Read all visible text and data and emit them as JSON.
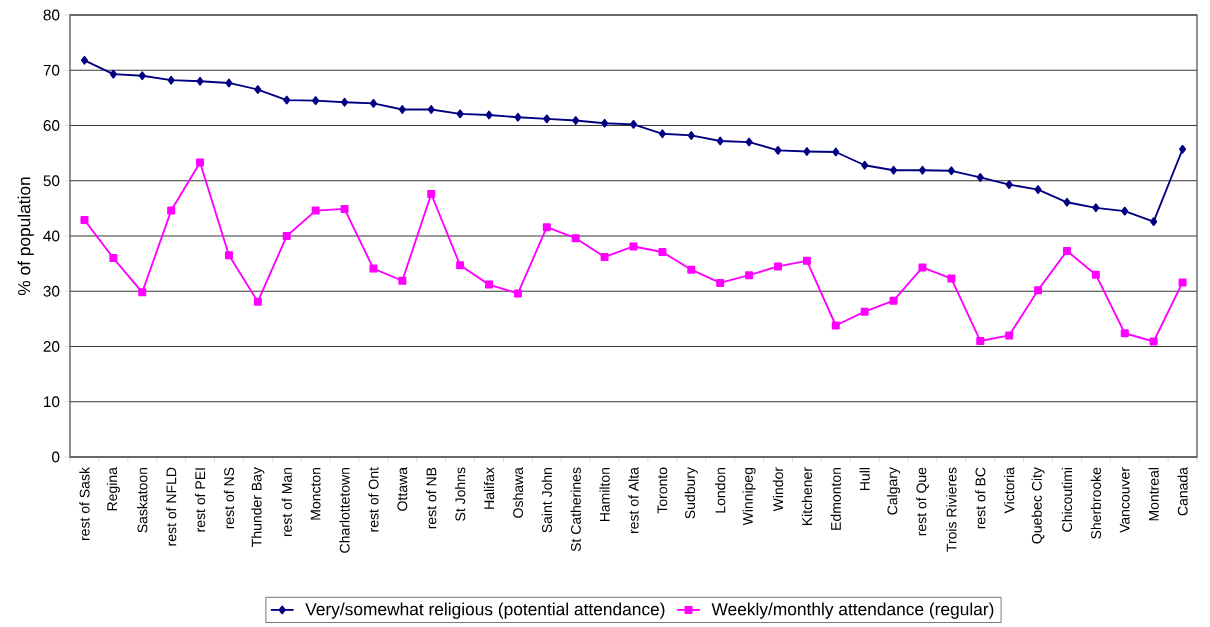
{
  "chart_data": {
    "type": "line",
    "ylabel": "% of population",
    "categories": [
      "rest of Sask",
      "Regina",
      "Saskatoon",
      "rest of NFLD",
      "rest of PEI",
      "rest of NS",
      "Thunder Bay",
      "rest of Man",
      "Moncton",
      "Charlottetown",
      "rest of Ont",
      "Ottawa",
      "rest of NB",
      "St Johns",
      "Halifax",
      "Oshawa",
      "Saint John",
      "St Catherines",
      "Hamilton",
      "rest of Alta",
      "Toronto",
      "Sudbury",
      "London",
      "Winnipeg",
      "Windor",
      "Kitchener",
      "Edmonton",
      "Hull",
      "Calgary",
      "rest of Que",
      "Trois Rivieres",
      "rest of BC",
      "Victoria",
      "Quebec City",
      "Chicoutimi",
      "Sherbrooke",
      "Vancouver",
      "Montreal",
      "Canada"
    ],
    "series": [
      {
        "name": "Very/somewhat religious (potential attendance)",
        "color": "#000080",
        "marker": "diamond",
        "values": [
          71.8,
          69.3,
          69.0,
          68.2,
          68.0,
          67.7,
          66.5,
          64.6,
          64.5,
          64.2,
          64.0,
          62.9,
          62.9,
          62.1,
          61.9,
          61.5,
          61.2,
          60.9,
          60.4,
          60.2,
          58.5,
          58.2,
          57.2,
          57.0,
          55.5,
          55.3,
          55.2,
          52.8,
          51.9,
          51.9,
          51.8,
          50.6,
          49.3,
          48.4,
          46.1,
          45.1,
          44.5,
          42.6,
          55.7
        ]
      },
      {
        "name": "Weekly/monthly attendance (regular)",
        "color": "#ff00ff",
        "marker": "square",
        "values": [
          42.9,
          36.0,
          29.8,
          44.6,
          53.3,
          36.5,
          28.1,
          40.0,
          44.6,
          44.9,
          34.1,
          31.9,
          47.6,
          34.7,
          31.2,
          29.6,
          41.6,
          39.6,
          36.2,
          38.1,
          37.1,
          33.9,
          31.5,
          32.9,
          34.5,
          35.5,
          23.8,
          26.3,
          28.3,
          34.3,
          32.3,
          21.0,
          22.0,
          30.2,
          37.3,
          33.0,
          22.4,
          20.9,
          31.6
        ]
      }
    ],
    "ylim": [
      0,
      80
    ],
    "yticks": [
      0,
      10,
      20,
      30,
      40,
      50,
      60,
      70,
      80
    ],
    "grid": "y",
    "legend": "bottom"
  }
}
